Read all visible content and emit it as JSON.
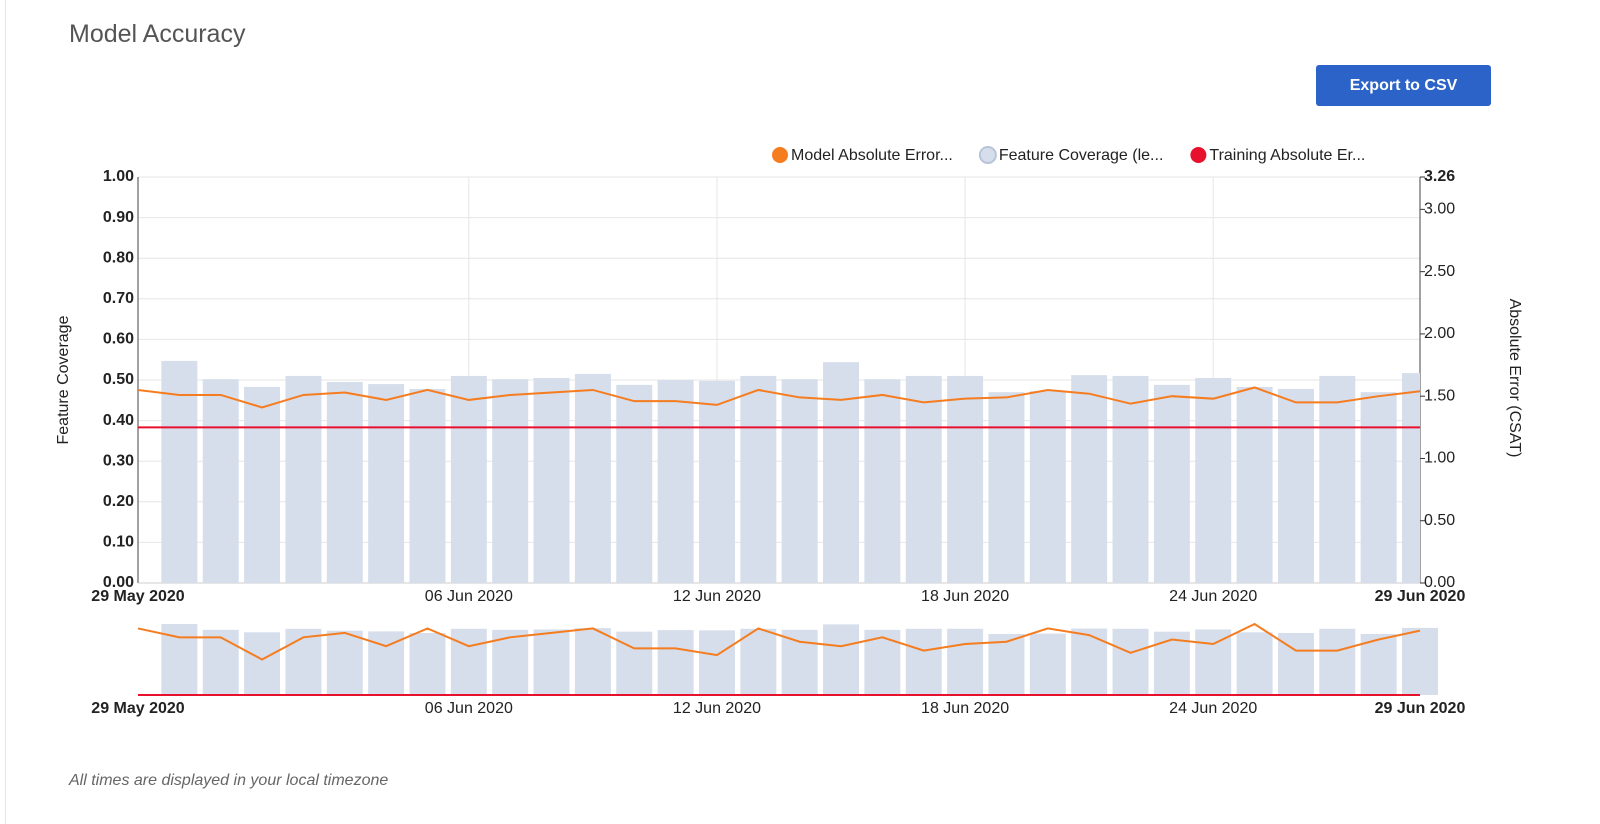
{
  "header": {
    "title": "Model Accuracy",
    "button": "Export to CSV"
  },
  "footer": {
    "note": "All times are displayed in your local timezone"
  },
  "chart_data": {
    "type": "combo",
    "x": [
      "2020-05-29",
      "2020-05-30",
      "2020-05-31",
      "2020-06-01",
      "2020-06-02",
      "2020-06-03",
      "2020-06-04",
      "2020-06-05",
      "2020-06-06",
      "2020-06-07",
      "2020-06-08",
      "2020-06-09",
      "2020-06-10",
      "2020-06-11",
      "2020-06-12",
      "2020-06-13",
      "2020-06-14",
      "2020-06-15",
      "2020-06-16",
      "2020-06-17",
      "2020-06-18",
      "2020-06-19",
      "2020-06-20",
      "2020-06-21",
      "2020-06-22",
      "2020-06-23",
      "2020-06-24",
      "2020-06-25",
      "2020-06-26",
      "2020-06-27",
      "2020-06-28",
      "2020-06-29"
    ],
    "xlim": [
      "2020-05-29",
      "2020-06-29"
    ],
    "xticks": [
      {
        "value": "2020-05-29",
        "label": "29 May 2020"
      },
      {
        "value": "2020-06-06",
        "label": "06 Jun 2020"
      },
      {
        "value": "2020-06-12",
        "label": "12 Jun 2020"
      },
      {
        "value": "2020-06-18",
        "label": "18 Jun 2020"
      },
      {
        "value": "2020-06-24",
        "label": "24 Jun 2020"
      },
      {
        "value": "2020-06-29",
        "label": "29 Jun 2020"
      }
    ],
    "ylabel": "Feature Coverage",
    "y2label": "Absolute Error (CSAT)",
    "ylim": [
      0,
      1
    ],
    "yticks": [
      {
        "value": 0,
        "label": "0.00"
      },
      {
        "value": 0.1,
        "label": "0.10"
      },
      {
        "value": 0.2,
        "label": "0.20"
      },
      {
        "value": 0.3,
        "label": "0.30"
      },
      {
        "value": 0.4,
        "label": "0.40"
      },
      {
        "value": 0.5,
        "label": "0.50"
      },
      {
        "value": 0.6,
        "label": "0.60"
      },
      {
        "value": 0.7,
        "label": "0.70"
      },
      {
        "value": 0.8,
        "label": "0.80"
      },
      {
        "value": 0.9,
        "label": "0.90"
      },
      {
        "value": 1,
        "label": "1.00"
      }
    ],
    "y2lim": [
      0,
      3.26
    ],
    "y2ticks": [
      {
        "value": 0,
        "label": "0.00"
      },
      {
        "value": 0.5,
        "label": "0.50"
      },
      {
        "value": 1,
        "label": "1.00"
      },
      {
        "value": 1.5,
        "label": "1.50"
      },
      {
        "value": 2,
        "label": "2.00"
      },
      {
        "value": 2.5,
        "label": "2.50"
      },
      {
        "value": 3,
        "label": "3.00"
      },
      {
        "value": 3.26,
        "label": "3.26"
      }
    ],
    "grid": true,
    "legend": "top-right",
    "series": [
      {
        "name": "Model Absolute Error...",
        "type": "line",
        "axis": "y2",
        "color": "#f57c1f",
        "values": [
          1.55,
          1.51,
          1.51,
          1.41,
          1.51,
          1.53,
          1.47,
          1.55,
          1.47,
          1.51,
          1.53,
          1.55,
          1.46,
          1.46,
          1.43,
          1.55,
          1.49,
          1.47,
          1.51,
          1.45,
          1.48,
          1.49,
          1.55,
          1.52,
          1.44,
          1.5,
          1.48,
          1.57,
          1.45,
          1.45,
          1.5,
          1.54
        ]
      },
      {
        "name": "Feature Coverage (le...",
        "type": "bar",
        "axis": "y",
        "color": "#d6deeb",
        "values": [
          null,
          0.547,
          0.502,
          0.483,
          0.51,
          0.495,
          0.49,
          0.478,
          0.51,
          0.502,
          0.505,
          0.515,
          0.488,
          0.5,
          0.498,
          0.51,
          0.502,
          0.544,
          0.502,
          0.51,
          0.51,
          0.47,
          0.473,
          0.512,
          0.51,
          0.488,
          0.505,
          0.483,
          0.478,
          0.51,
          0.47,
          0.517
        ]
      },
      {
        "name": "Training Absolute Er...",
        "type": "line",
        "axis": "y2",
        "color": "#e8112d",
        "values": [
          1.25,
          1.25,
          1.25,
          1.25,
          1.25,
          1.25,
          1.25,
          1.25,
          1.25,
          1.25,
          1.25,
          1.25,
          1.25,
          1.25,
          1.25,
          1.25,
          1.25,
          1.25,
          1.25,
          1.25,
          1.25,
          1.25,
          1.25,
          1.25,
          1.25,
          1.25,
          1.25,
          1.25,
          1.25,
          1.25,
          1.25,
          1.25
        ]
      }
    ]
  }
}
